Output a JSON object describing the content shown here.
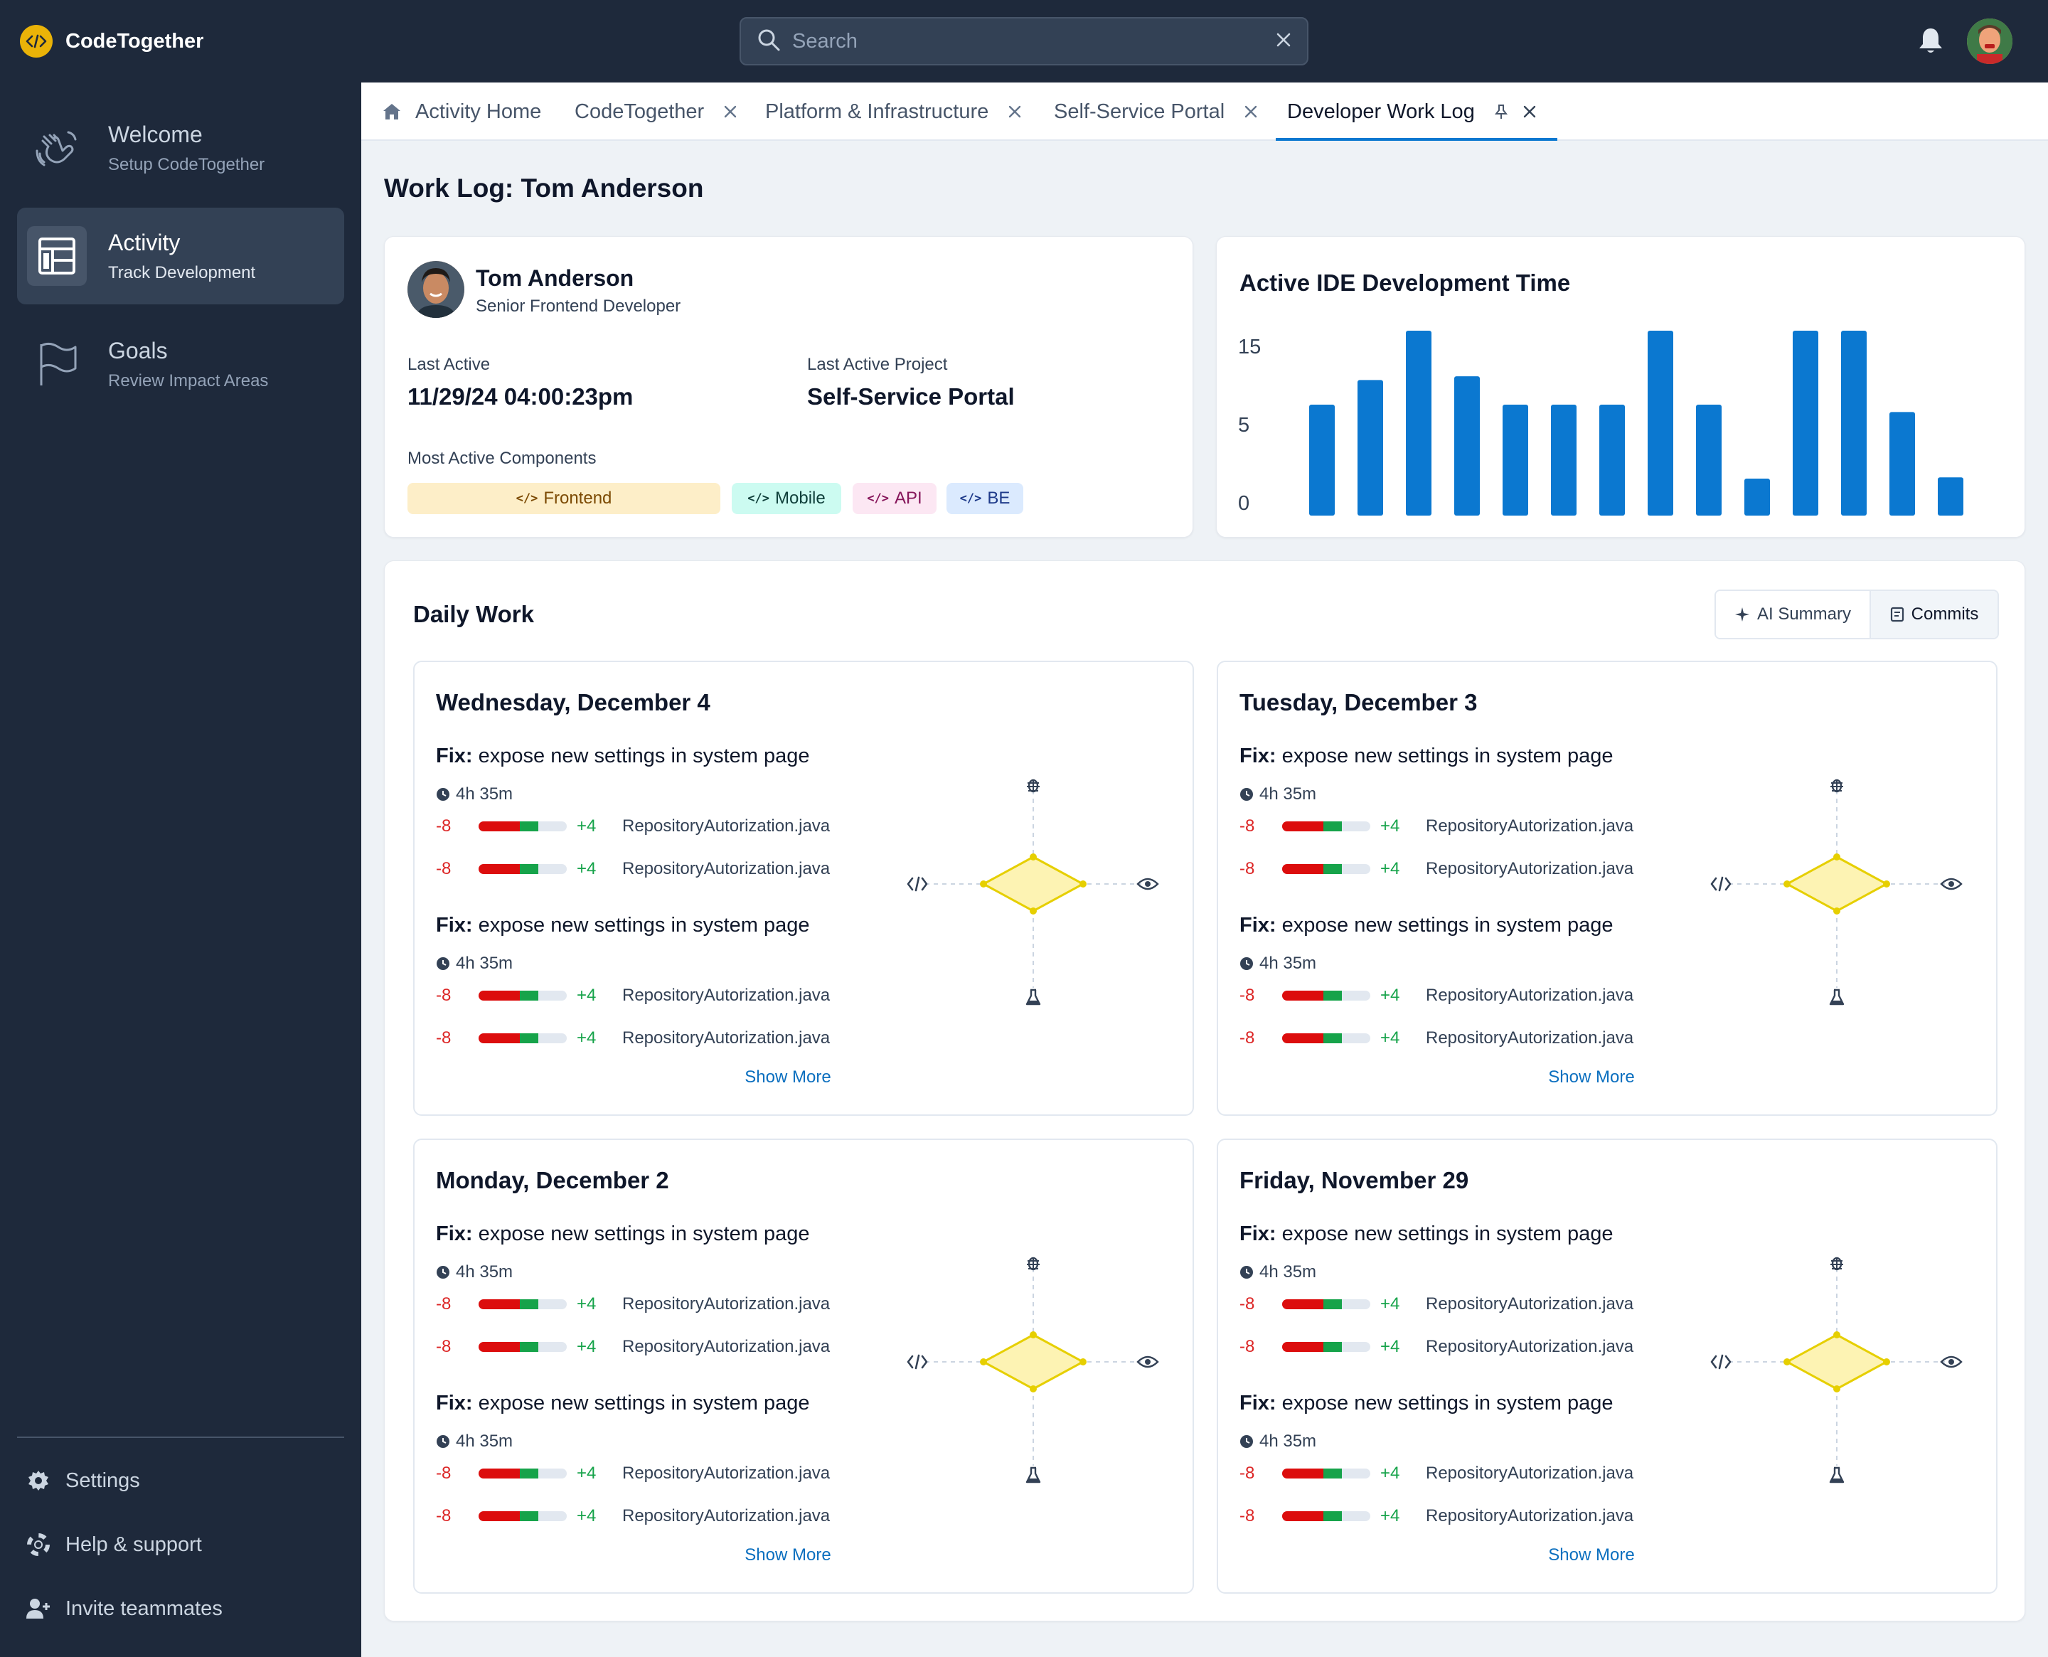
{
  "app": {
    "name": "CodeTogether"
  },
  "search": {
    "placeholder": "Search"
  },
  "sidebar": {
    "items": [
      {
        "title": "Welcome",
        "subtitle": "Setup CodeTogether"
      },
      {
        "title": "Activity",
        "subtitle": "Track Development"
      },
      {
        "title": "Goals",
        "subtitle": "Review Impact Areas"
      }
    ],
    "footer": [
      {
        "label": "Settings"
      },
      {
        "label": "Help & support"
      },
      {
        "label": "Invite teammates"
      }
    ]
  },
  "tabs": [
    {
      "label": "Activity Home"
    },
    {
      "label": "CodeTogether"
    },
    {
      "label": "Platform & Infrastructure"
    },
    {
      "label": "Self-Service Portal"
    },
    {
      "label": "Developer Work Log"
    }
  ],
  "page": {
    "title": "Work Log: Tom Anderson"
  },
  "profile": {
    "name": "Tom Anderson",
    "role": "Senior Frontend Developer",
    "last_active_label": "Last Active",
    "last_active_value": "11/29/24 04:00:23pm",
    "last_project_label": "Last Active Project",
    "last_project_value": "Self-Service Portal",
    "components_label": "Most Active Components",
    "components": [
      {
        "label": "Frontend",
        "bg": "#fdeec8",
        "fg": "#7c4a03"
      },
      {
        "label": "Mobile",
        "bg": "#ccfbf1",
        "fg": "#0f3f3a"
      },
      {
        "label": "API",
        "bg": "#fce7f3",
        "fg": "#86155a"
      },
      {
        "label": "BE",
        "bg": "#dbeafe",
        "fg": "#1e3a8a"
      }
    ]
  },
  "chart_data": {
    "type": "bar",
    "title": "Active IDE Development Time",
    "values": [
      9,
      11,
      15,
      11.3,
      9,
      9,
      9,
      15,
      9,
      3,
      15,
      15,
      8.4,
      3.1
    ],
    "yticks": [
      0,
      5,
      15
    ],
    "color": "#0b78d0"
  },
  "daily": {
    "title": "Daily Work",
    "ai_summary_label": "AI Summary",
    "commits_label": "Commits",
    "show_more_label": "Show More",
    "days": [
      {
        "date": "Wednesday, December 4",
        "commits": [
          {
            "prefix": "Fix:",
            "text": " expose new settings in system page",
            "duration": "4h 35m",
            "files": [
              {
                "minus": "-8",
                "plus": "+4",
                "name": "RepositoryAutorization.java"
              },
              {
                "minus": "-8",
                "plus": "+4",
                "name": "RepositoryAutorization.java"
              }
            ]
          },
          {
            "prefix": "Fix:",
            "text": " expose new settings in system page",
            "duration": "4h 35m",
            "files": [
              {
                "minus": "-8",
                "plus": "+4",
                "name": "RepositoryAutorization.java"
              },
              {
                "minus": "-8",
                "plus": "+4",
                "name": "RepositoryAutorization.java"
              }
            ]
          }
        ]
      },
      {
        "date": "Tuesday, December 3",
        "commits": [
          {
            "prefix": "Fix:",
            "text": " expose new settings in system page",
            "duration": "4h 35m",
            "files": [
              {
                "minus": "-8",
                "plus": "+4",
                "name": "RepositoryAutorization.java"
              },
              {
                "minus": "-8",
                "plus": "+4",
                "name": "RepositoryAutorization.java"
              }
            ]
          },
          {
            "prefix": "Fix:",
            "text": " expose new settings in system page",
            "duration": "4h 35m",
            "files": [
              {
                "minus": "-8",
                "plus": "+4",
                "name": "RepositoryAutorization.java"
              },
              {
                "minus": "-8",
                "plus": "+4",
                "name": "RepositoryAutorization.java"
              }
            ]
          }
        ]
      },
      {
        "date": "Monday, December 2",
        "commits": [
          {
            "prefix": "Fix:",
            "text": " expose new settings in system page",
            "duration": "4h 35m",
            "files": [
              {
                "minus": "-8",
                "plus": "+4",
                "name": "RepositoryAutorization.java"
              },
              {
                "minus": "-8",
                "plus": "+4",
                "name": "RepositoryAutorization.java"
              }
            ]
          },
          {
            "prefix": "Fix:",
            "text": " expose new settings in system page",
            "duration": "4h 35m",
            "files": [
              {
                "minus": "-8",
                "plus": "+4",
                "name": "RepositoryAutorization.java"
              },
              {
                "minus": "-8",
                "plus": "+4",
                "name": "RepositoryAutorization.java"
              }
            ]
          }
        ]
      },
      {
        "date": "Friday, November 29",
        "commits": [
          {
            "prefix": "Fix:",
            "text": " expose new settings in system page",
            "duration": "4h 35m",
            "files": [
              {
                "minus": "-8",
                "plus": "+4",
                "name": "RepositoryAutorization.java"
              },
              {
                "minus": "-8",
                "plus": "+4",
                "name": "RepositoryAutorization.java"
              }
            ]
          },
          {
            "prefix": "Fix:",
            "text": " expose new settings in system page",
            "duration": "4h 35m",
            "files": [
              {
                "minus": "-8",
                "plus": "+4",
                "name": "RepositoryAutorization.java"
              },
              {
                "minus": "-8",
                "plus": "+4",
                "name": "RepositoryAutorization.java"
              }
            ]
          }
        ]
      }
    ]
  }
}
